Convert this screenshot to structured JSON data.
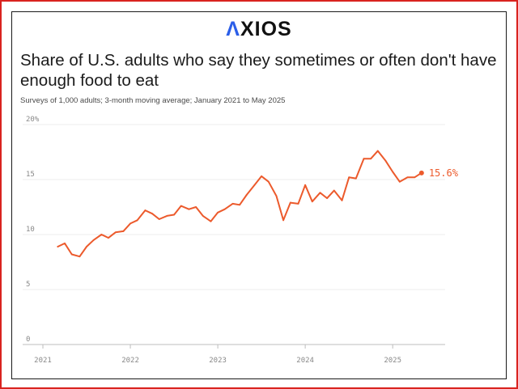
{
  "brand": {
    "logo_prefix": "",
    "logo_accent": "Λ",
    "logo_rest": "XIOS"
  },
  "chart_data": {
    "type": "line",
    "title": "Share of U.S. adults who say they sometimes or often don't have enough food to eat",
    "subtitle": "Surveys of 1,000 adults; 3-month moving average; January 2021 to May 2025",
    "xlabel": "",
    "ylabel": "",
    "xlim": [
      2021,
      2025.6
    ],
    "ylim": [
      0,
      20
    ],
    "yticks": [
      0,
      5,
      10,
      15,
      20
    ],
    "ytick_labels": [
      "0",
      "5",
      "10",
      "15",
      "20%"
    ],
    "xticks": [
      2021,
      2022,
      2023,
      2024,
      2025
    ],
    "xtick_labels": [
      "2021",
      "2022",
      "2023",
      "2024",
      "2025"
    ],
    "grid": true,
    "series": [
      {
        "color": "#ec5a2c",
        "x": [
          2021.17,
          2021.25,
          2021.33,
          2021.42,
          2021.5,
          2021.58,
          2021.67,
          2021.75,
          2021.83,
          2021.92,
          2022.0,
          2022.08,
          2022.17,
          2022.25,
          2022.33,
          2022.42,
          2022.5,
          2022.58,
          2022.67,
          2022.75,
          2022.83,
          2022.92,
          2023.0,
          2023.08,
          2023.17,
          2023.25,
          2023.33,
          2023.42,
          2023.5,
          2023.58,
          2023.67,
          2023.75,
          2023.83,
          2023.92,
          2024.0,
          2024.08,
          2024.17,
          2024.25,
          2024.33,
          2024.42,
          2024.5,
          2024.58,
          2024.67,
          2024.75,
          2024.83,
          2024.92,
          2025.0,
          2025.08,
          2025.17,
          2025.25,
          2025.33
        ],
        "y": [
          8.9,
          9.2,
          8.2,
          8.0,
          8.9,
          9.5,
          10.0,
          9.7,
          10.2,
          10.3,
          11.0,
          11.3,
          12.2,
          11.9,
          11.4,
          11.7,
          11.8,
          12.6,
          12.3,
          12.5,
          11.7,
          11.2,
          12.0,
          12.3,
          12.8,
          12.7,
          13.6,
          14.5,
          15.3,
          14.8,
          13.5,
          11.3,
          12.9,
          12.8,
          14.5,
          13.0,
          13.8,
          13.3,
          14.0,
          13.1,
          15.2,
          15.1,
          16.9,
          16.9,
          17.6,
          16.7,
          15.7,
          14.8,
          15.2,
          15.2,
          15.6
        ]
      }
    ],
    "end_label": "15.6%"
  }
}
